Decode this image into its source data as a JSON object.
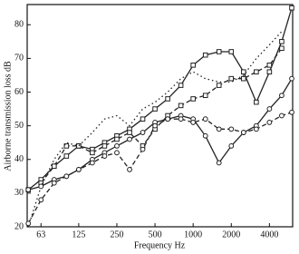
{
  "chart_data": {
    "type": "line",
    "xlabel": "Frequency Hz",
    "ylabel": "Airborne transmission loss dB",
    "xscale": "log",
    "xlim": [
      49,
      6100
    ],
    "ylim": [
      20,
      86
    ],
    "xticks": [
      63,
      125,
      250,
      500,
      1000,
      2000,
      4000
    ],
    "yticks": [
      20,
      30,
      40,
      50,
      60,
      70,
      80
    ],
    "series": [
      {
        "color": "#222",
        "dash": "solid",
        "marker": "square",
        "x": [
          50,
          63,
          80,
          100,
          125,
          160,
          200,
          250,
          315,
          400,
          500,
          630,
          800,
          1000,
          1250,
          1600,
          2000,
          2500,
          3150,
          4000,
          5000,
          6000
        ],
        "values": [
          31,
          34,
          38,
          41,
          44,
          43,
          45,
          47,
          49,
          52,
          55,
          58,
          62,
          68,
          71,
          72,
          72,
          66,
          57,
          66,
          75,
          85
        ]
      },
      {
        "color": "#222",
        "dash": "dashed",
        "marker": "square",
        "x": [
          63,
          80,
          100,
          125,
          160,
          200,
          250,
          315,
          400,
          500,
          630,
          800,
          1000,
          1250,
          1600,
          2000,
          2500,
          3150,
          4000,
          5000
        ],
        "values": [
          33,
          38,
          44,
          44,
          42,
          44,
          46,
          48,
          44,
          49,
          53,
          56,
          58,
          59,
          62,
          64,
          64,
          66,
          68,
          73
        ]
      },
      {
        "color": "#222",
        "dash": "dotted",
        "marker": "none",
        "x": [
          50,
          63,
          80,
          100,
          125,
          160,
          200,
          250,
          315,
          400,
          500,
          630,
          800,
          1000,
          1250,
          1600,
          2000,
          2500,
          3150,
          4000,
          5000
        ],
        "values": [
          20,
          32,
          40,
          45,
          44,
          48,
          52,
          53,
          50,
          55,
          57,
          60,
          64,
          66,
          64,
          63,
          63,
          65,
          70,
          74,
          78
        ]
      },
      {
        "color": "#222",
        "dash": "solid",
        "marker": "circle",
        "x": [
          50,
          63,
          80,
          100,
          125,
          160,
          200,
          250,
          315,
          400,
          500,
          630,
          800,
          1000,
          1250,
          1600,
          2000,
          2500,
          3150,
          4000,
          5000,
          6000
        ],
        "values": [
          31,
          32,
          34,
          35,
          37,
          40,
          42,
          44,
          46,
          48,
          51,
          52,
          53,
          52,
          47,
          39,
          44,
          48,
          50,
          55,
          59,
          64
        ]
      },
      {
        "color": "#222",
        "dash": "dashed",
        "marker": "circle",
        "x": [
          50,
          63,
          80,
          100,
          125,
          160,
          200,
          250,
          315,
          400,
          500,
          630,
          800,
          1000,
          1250,
          1600,
          2000,
          2500,
          3150,
          4000,
          5000,
          6000
        ],
        "values": [
          21,
          28,
          33,
          35,
          37,
          39,
          41,
          42,
          37,
          43,
          50,
          52,
          52,
          51,
          52,
          49,
          49,
          48,
          49,
          51,
          53,
          54
        ]
      }
    ]
  }
}
